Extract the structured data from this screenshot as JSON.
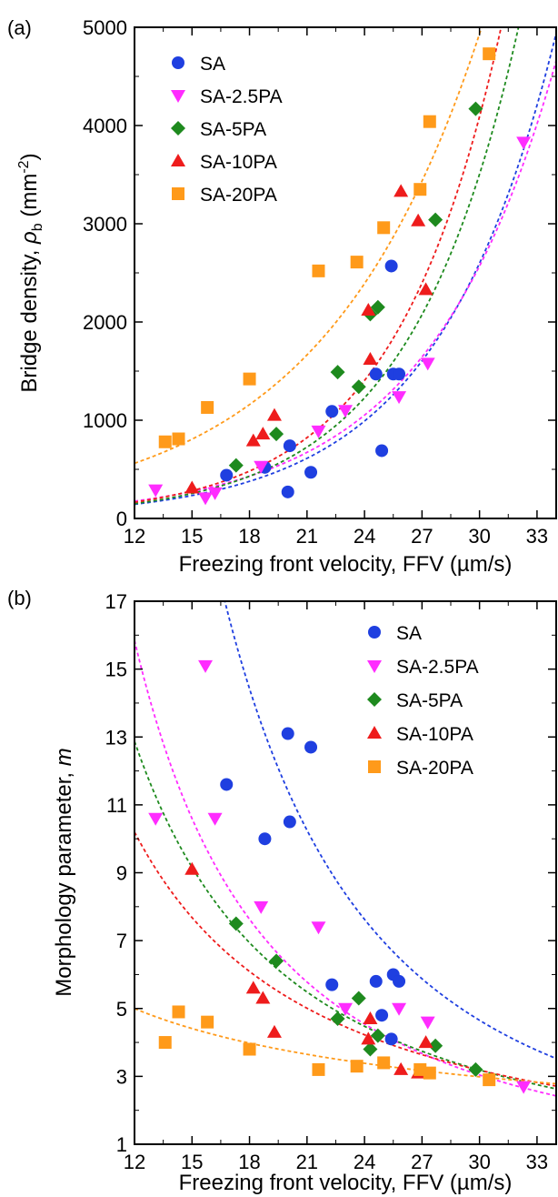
{
  "colors": {
    "SA": "#1f3fe0",
    "SA-2.5PA": "#ff2cff",
    "SA-5PA": "#1e8a1e",
    "SA-10PA": "#ee1c1c",
    "SA-20PA": "#ff9a1a"
  },
  "chart_data": [
    {
      "panel_label": "(a)",
      "type": "scatter",
      "xlabel": "Freezing front velocity, FFV (µm/s)",
      "ylabel_main": "Bridge density, ",
      "ylabel_symbol": "ρ",
      "ylabel_sub": "b",
      "ylabel_unit_open": " (mm",
      "ylabel_unit_sup": "-2",
      "ylabel_unit_close": ")",
      "xlim": [
        12,
        34
      ],
      "ylim": [
        0,
        5000
      ],
      "xticks": [
        12,
        15,
        18,
        21,
        24,
        27,
        30,
        33
      ],
      "yticks": [
        0,
        1000,
        2000,
        3000,
        4000,
        5000
      ],
      "legend_position": "top-left",
      "series": [
        {
          "name": "SA",
          "marker": "circle",
          "x": [
            16.8,
            18.8,
            20.0,
            20.1,
            21.2,
            22.3,
            24.6,
            24.9,
            25.4,
            25.5,
            25.8
          ],
          "y": [
            440,
            520,
            270,
            740,
            470,
            1090,
            1470,
            690,
            2570,
            1470,
            1470
          ],
          "fit": {
            "a": 21.0,
            "b": 0.1606
          }
        },
        {
          "name": "SA-2.5PA",
          "marker": "triangle-down",
          "x": [
            13.1,
            15.7,
            16.2,
            18.6,
            21.6,
            23.0,
            25.8,
            27.3,
            32.3
          ],
          "y": [
            290,
            210,
            260,
            530,
            890,
            1100,
            1240,
            1580,
            3830
          ],
          "fit": {
            "a": 29.5,
            "b": 0.1489
          }
        },
        {
          "name": "SA-5PA",
          "marker": "diamond",
          "x": [
            17.3,
            19.4,
            22.6,
            23.7,
            24.3,
            24.7,
            27.7,
            29.8
          ],
          "y": [
            540,
            860,
            1490,
            1340,
            2080,
            2150,
            3040,
            4170
          ],
          "fit": {
            "a": 18.5,
            "b": 0.1748
          }
        },
        {
          "name": "SA-10PA",
          "marker": "triangle-up",
          "x": [
            15.0,
            18.2,
            18.7,
            19.3,
            24.2,
            24.3,
            25.9,
            26.8,
            27.2
          ],
          "y": [
            310,
            790,
            860,
            1050,
            2120,
            1620,
            3330,
            3030,
            2330
          ],
          "fit": {
            "a": 19.5,
            "b": 0.1782
          }
        },
        {
          "name": "SA-20PA",
          "marker": "square",
          "x": [
            13.6,
            14.3,
            15.8,
            18.0,
            21.6,
            23.6,
            25.0,
            26.9,
            27.4,
            30.5
          ],
          "y": [
            780,
            810,
            1130,
            1420,
            2520,
            2610,
            2960,
            3350,
            4040,
            4730
          ],
          "fit": {
            "a": 132.0,
            "b": 0.1207
          }
        }
      ]
    },
    {
      "panel_label": "(b)",
      "type": "scatter",
      "xlabel": "Freezing front velocity, FFV (µm/s)",
      "ylabel_main": "Morphology parameter, ",
      "ylabel_symbol": "m",
      "xlim": [
        12,
        34
      ],
      "ylim": [
        1,
        17
      ],
      "xticks": [
        12,
        15,
        18,
        21,
        24,
        27,
        30,
        33
      ],
      "yticks": [
        1,
        3,
        5,
        7,
        9,
        11,
        13,
        15,
        17
      ],
      "legend_position": "top-right",
      "series": [
        {
          "name": "SA",
          "marker": "circle",
          "x": [
            16.8,
            18.8,
            20.0,
            20.1,
            21.2,
            22.3,
            24.6,
            24.9,
            25.4,
            25.5,
            25.8
          ],
          "y": [
            11.6,
            10.0,
            13.1,
            10.5,
            12.7,
            5.7,
            5.8,
            4.8,
            4.1,
            6.0,
            5.8
          ],
          "fit": {
            "a": 8700,
            "b": -2.215
          }
        },
        {
          "name": "SA-2.5PA",
          "marker": "triangle-down",
          "x": [
            13.1,
            15.7,
            16.2,
            18.6,
            21.6,
            23.0,
            25.8,
            27.3,
            32.3
          ],
          "y": [
            10.6,
            15.1,
            10.6,
            8.0,
            7.4,
            5.0,
            5.0,
            4.6,
            2.7
          ],
          "fit": {
            "a": 1395,
            "b": -1.802
          }
        },
        {
          "name": "SA-5PA",
          "marker": "diamond",
          "x": [
            17.3,
            19.4,
            22.6,
            23.7,
            24.3,
            24.7,
            27.7,
            29.8
          ],
          "y": [
            7.5,
            6.4,
            4.7,
            5.3,
            3.8,
            4.2,
            3.9,
            3.2
          ],
          "fit": {
            "a": 568,
            "b": -1.524
          }
        },
        {
          "name": "SA-10PA",
          "marker": "triangle-up",
          "x": [
            15.0,
            18.2,
            18.7,
            19.3,
            24.2,
            24.3,
            25.9,
            26.8,
            27.2
          ],
          "y": [
            9.1,
            5.6,
            5.3,
            4.3,
            4.1,
            4.7,
            3.2,
            3.1,
            4.0
          ],
          "fit": {
            "a": 240,
            "b": -1.271
          }
        },
        {
          "name": "SA-20PA",
          "marker": "square",
          "x": [
            13.6,
            14.3,
            15.8,
            18.0,
            21.6,
            23.6,
            25.0,
            26.9,
            27.4,
            30.5
          ],
          "y": [
            4.0,
            4.9,
            4.6,
            3.8,
            3.2,
            3.3,
            3.4,
            3.2,
            3.1,
            2.9
          ],
          "fit": {
            "a": 20.2,
            "b": -0.562
          }
        }
      ]
    }
  ]
}
